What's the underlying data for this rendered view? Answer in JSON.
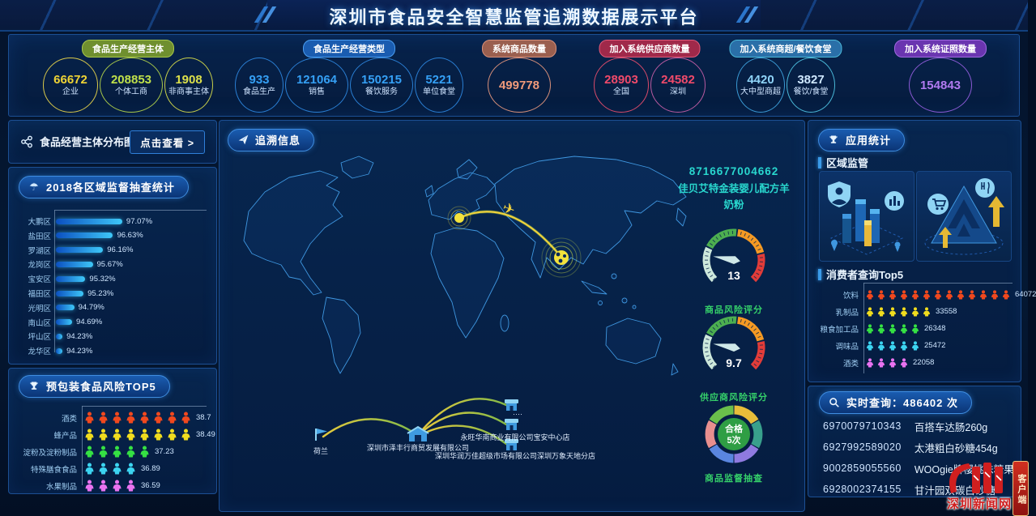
{
  "header": {
    "title": "深圳市食品安全智慧监管追溯数据展示平台"
  },
  "top_stats": {
    "groups": [
      {
        "label": "食品生产经营主体",
        "badge_bg": "#6f8f2f",
        "badge_border": "#a8c84a",
        "items": [
          {
            "value": "66672",
            "label": "企业",
            "color": "#f0d435",
            "ring": "#d8c84a"
          },
          {
            "value": "208853",
            "label": "个体工商",
            "color": "#bfe04a",
            "ring": "#a8c84a"
          },
          {
            "value": "1908",
            "label": "非商事主体",
            "color": "#dce04a",
            "ring": "#c8cf4a"
          }
        ]
      },
      {
        "label": "食品生产经营类型",
        "badge_bg": "#1a5cb0",
        "badge_border": "#4a9df0",
        "items": [
          {
            "value": "933",
            "label": "食品生产",
            "color": "#35a0f5",
            "ring": "#2a7fd4"
          },
          {
            "value": "121064",
            "label": "销售",
            "color": "#35a0f5",
            "ring": "#2a7fd4"
          },
          {
            "value": "150215",
            "label": "餐饮服务",
            "color": "#35a0f5",
            "ring": "#2a7fd4"
          },
          {
            "value": "5221",
            "label": "单位食堂",
            "color": "#35a0f5",
            "ring": "#2a7fd4"
          }
        ]
      },
      {
        "label": "系统商品数量",
        "badge_bg": "#9a5f4f",
        "badge_border": "#d8907a",
        "items": [
          {
            "value": "499778",
            "label": "",
            "color": "#f09a7a",
            "ring": "#d8907a"
          }
        ]
      },
      {
        "label": "加入系统供应商数量",
        "badge_bg": "#a0294a",
        "badge_border": "#e05a7a",
        "items": [
          {
            "value": "28903",
            "label": "全国",
            "color": "#f04a6a",
            "ring": "#d84a6a"
          },
          {
            "value": "24582",
            "label": "深圳",
            "color": "#f04a6a",
            "ring": "#b85aa0"
          }
        ]
      },
      {
        "label": "加入系统商超/餐饮食堂",
        "badge_bg": "#2a6fa8",
        "badge_border": "#4ab8d8",
        "items": [
          {
            "value": "4420",
            "label": "大中型商超",
            "color": "#8fd4f8",
            "ring": "#3a9ad4"
          },
          {
            "value": "3827",
            "label": "餐饮/食堂",
            "color": "#cfe8ff",
            "ring": "#4ab8d8"
          }
        ]
      },
      {
        "label": "加入系统证照数量",
        "badge_bg": "#6a35b0",
        "badge_border": "#a06ae0",
        "items": [
          {
            "value": "154843",
            "label": "",
            "color": "#b07af0",
            "ring": "#8a5ad4"
          }
        ]
      }
    ]
  },
  "left_column": {
    "distribution_panel": {
      "icon": "share-nodes-icon",
      "title": "食品经营主体分布图",
      "view_button": "点击查看 >"
    },
    "inspection_panel": {
      "icon": "umbrella-icon",
      "title": "2018各区域监督抽查统计"
    },
    "risk_panel": {
      "icon": "trophy-icon",
      "title": "预包装食品风险TOP5"
    }
  },
  "center_panel": {
    "trace_pill": {
      "icon": "paper-plane-icon",
      "label": "追溯信息"
    },
    "product": {
      "barcode": "8716677004662",
      "name_line1": "佳贝艾特金装婴儿配方羊",
      "name_line2": "奶粉"
    },
    "flow": {
      "origin": "荷兰",
      "distributor": "深圳市泽丰行商贸发展有限公司",
      "store_placeholder": "····",
      "store1": "永旺华南商业有限公司宝安中心店",
      "store2": "深圳华润万佳超级市场有限公司深圳万象天地分店"
    }
  },
  "right_column": {
    "app_panel": {
      "icon": "trophy-icon",
      "title": "应用统计",
      "section_region": "区域监管",
      "section_consumer": "消费者查询Top5"
    },
    "realtime_panel": {
      "icon": "magnifier-icon",
      "title": "实时查询：486402 次",
      "rows": [
        {
          "code": "6970079710343",
          "name": "百搭车达肠260g"
        },
        {
          "code": "6927992589020",
          "name": "太港粗白砂糖454g"
        },
        {
          "code": "9002859055560",
          "name": "WOOgie牌樱桃味糖果"
        },
        {
          "code": "6928002374155",
          "name": "甘汁园双碳白砂糖"
        }
      ]
    }
  },
  "watermark": {
    "site_name": "深圳新闻网",
    "side_tab": "客户端"
  },
  "chart_data": [
    {
      "id": "region_inspection",
      "type": "bar",
      "title": "2018各区域监督抽查统计",
      "categories": [
        "大鹏区",
        "盐田区",
        "罗湖区",
        "龙岗区",
        "宝安区",
        "福田区",
        "光明区",
        "南山区",
        "坪山区",
        "龙华区"
      ],
      "values": [
        97.07,
        96.63,
        96.16,
        95.67,
        95.32,
        95.23,
        94.79,
        94.69,
        94.23,
        94.23
      ],
      "value_labels": [
        "97.07%",
        "96.63%",
        "96.16%",
        "95.67%",
        "95.32%",
        "95.23%",
        "94.79%",
        "94.69%",
        "94.23%",
        "94.23%"
      ],
      "xlim": [
        94,
        97.5
      ],
      "bar_color": "#2bb3f5",
      "unit": "%"
    },
    {
      "id": "prepackaged_food_risk_top5",
      "type": "pictograph",
      "title": "预包装食品风险TOP5",
      "categories": [
        "酒类",
        "蜂产品",
        "淀粉及淀粉制品",
        "特殊膳食食品",
        "水果制品"
      ],
      "values": [
        38.7,
        38.49,
        37.23,
        36.89,
        36.59
      ],
      "value_labels": [
        "38.7",
        "38.49",
        "37.23",
        "36.89",
        "36.59"
      ],
      "icon_counts": [
        8,
        8,
        5,
        4,
        4
      ],
      "icon_colors": [
        "#f0481e",
        "#f0dc1e",
        "#35e043",
        "#3cd4f0",
        "#e973f0"
      ]
    },
    {
      "id": "consumer_query_top5",
      "type": "pictograph",
      "title": "消费者查询Top5",
      "categories": [
        "饮料",
        "乳制品",
        "粮食加工品",
        "调味品",
        "酒类"
      ],
      "values": [
        64072,
        33558,
        26348,
        25472,
        22058
      ],
      "value_labels": [
        "64072",
        "33558",
        "26348",
        "25472",
        "22058"
      ],
      "icon_counts": [
        13,
        6,
        5,
        5,
        4
      ],
      "icon_colors": [
        "#f0481e",
        "#f0dc1e",
        "#35e043",
        "#3cd4f0",
        "#e973f0"
      ]
    },
    {
      "id": "product_risk_gauge",
      "type": "gauge",
      "label": "商品风险评分",
      "value": 13,
      "segments": [
        "#cde8dc",
        "#4caf50",
        "#f59a23",
        "#e23c39"
      ],
      "needle_angle_deg": 170
    },
    {
      "id": "supplier_risk_gauge",
      "type": "gauge",
      "label": "供应商风险评分",
      "value": 9.7,
      "segments": [
        "#cde8dc",
        "#4caf50",
        "#f59a23",
        "#e23c39"
      ],
      "needle_angle_deg": 170
    },
    {
      "id": "supervision_sampling_donut",
      "type": "donut",
      "label": "商品监督抽查",
      "center_line1": "合格",
      "center_line2": "5次",
      "center_color": "#2f9e44",
      "segment_colors": [
        "#e8bd3a",
        "#38a08c",
        "#8f7ae0",
        "#5a86e0",
        "#e88f8f",
        "#6abf4b"
      ],
      "segment_values": [
        1,
        1,
        1,
        1,
        1,
        1
      ]
    }
  ]
}
